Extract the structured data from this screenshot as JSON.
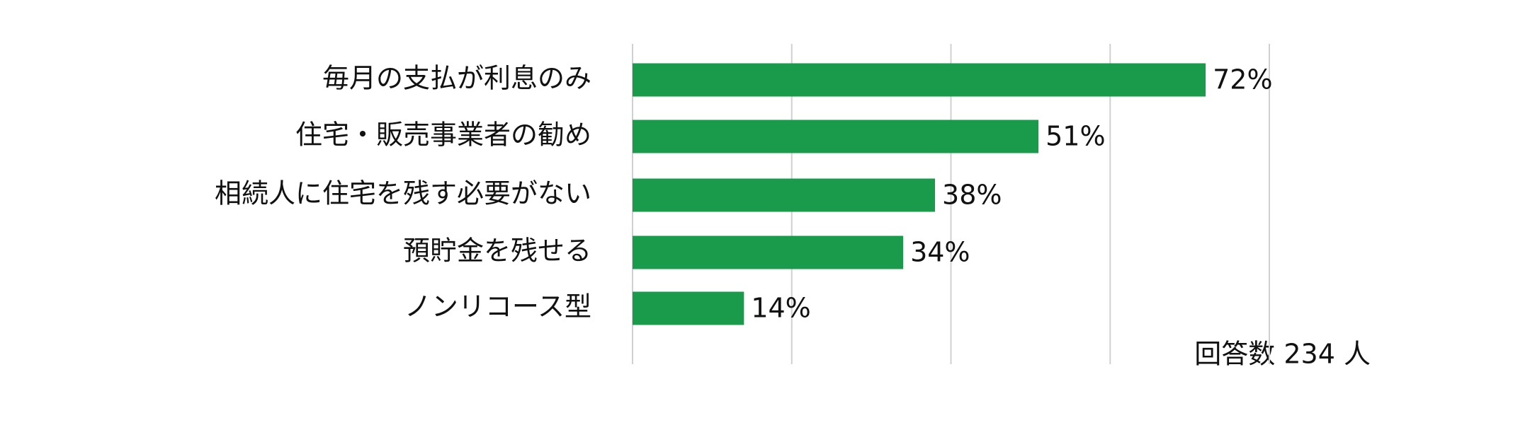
{
  "chart_data": {
    "type": "bar",
    "orientation": "horizontal",
    "categories": [
      "毎月の支払が利息のみ",
      "住宅・販売事業者の勧め",
      "相続人に住宅を残す必要がない",
      "預貯金を残せる",
      "ノンリコース型"
    ],
    "values": [
      72,
      51,
      38,
      34,
      14
    ],
    "value_labels": [
      "72%",
      "51%",
      "38%",
      "34%",
      "14%"
    ],
    "color": "#199b4b",
    "xlim": [
      0,
      80
    ],
    "xticks": [
      0,
      20,
      40,
      60,
      80
    ],
    "grid": true,
    "annotation": "回答数 234 人"
  }
}
